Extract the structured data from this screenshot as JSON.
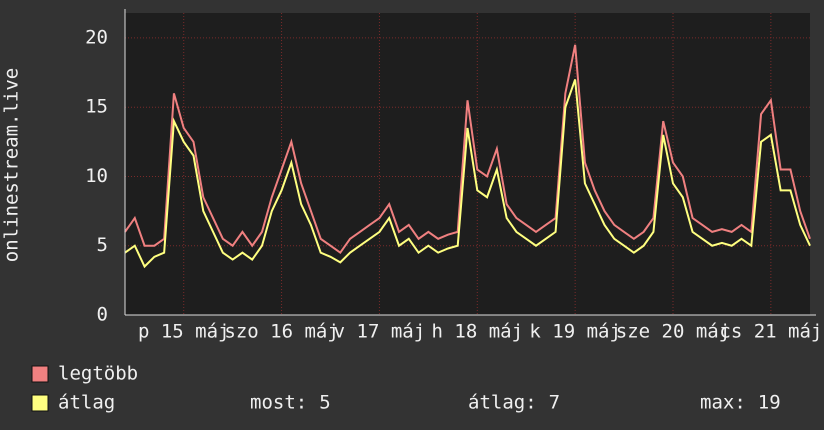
{
  "chart_data": {
    "type": "line",
    "y_label": "onlinestream.live",
    "ylim": [
      0,
      21.8
    ],
    "yticks": [
      0,
      5,
      10,
      15,
      20
    ],
    "grid": true,
    "xlim": [
      0,
      70
    ],
    "xticks": [
      {
        "value": 6,
        "label": "p 15 máj"
      },
      {
        "value": 16,
        "label": "szo 16 máj"
      },
      {
        "value": 26,
        "label": "v 17 máj"
      },
      {
        "value": 36,
        "label": "h 18 máj"
      },
      {
        "value": 46,
        "label": "k 19 máj"
      },
      {
        "value": 56,
        "label": "sze 20 máj"
      },
      {
        "value": 66,
        "label": "cs 21 máj"
      }
    ],
    "series": [
      {
        "name": "legtöbb",
        "color": "#f08080",
        "values": [
          6,
          7,
          5,
          5,
          5.5,
          16,
          13.5,
          12.5,
          8.5,
          7,
          5.5,
          5,
          6,
          5,
          6,
          8.5,
          10.5,
          12.5,
          9.5,
          7.5,
          5.5,
          5,
          4.5,
          5.5,
          6,
          6.5,
          7,
          8,
          6,
          6.5,
          5.5,
          6,
          5.5,
          5.8,
          6,
          15.5,
          10.5,
          10,
          12,
          8,
          7,
          6.5,
          6,
          6.5,
          7,
          16,
          19.5,
          11,
          9,
          7.5,
          6.5,
          6,
          5.5,
          6,
          7,
          14,
          11,
          10,
          7,
          6.5,
          6,
          6.2,
          6,
          6.5,
          6,
          14.5,
          15.5,
          10.5,
          10.5,
          7.5,
          5.5
        ]
      },
      {
        "name": "átlag",
        "color": "#ffff80",
        "values": [
          4.5,
          5,
          3.5,
          4.2,
          4.5,
          14,
          12.5,
          11.5,
          7.5,
          6,
          4.5,
          4,
          4.5,
          4,
          5,
          7.5,
          9,
          11,
          8,
          6.5,
          4.5,
          4.2,
          3.8,
          4.5,
          5,
          5.5,
          6,
          7,
          5,
          5.5,
          4.5,
          5,
          4.5,
          4.8,
          5,
          13.5,
          9,
          8.5,
          10.5,
          7,
          6,
          5.5,
          5,
          5.5,
          6,
          15,
          17,
          9.5,
          8,
          6.5,
          5.5,
          5,
          4.5,
          5,
          6,
          13,
          9.5,
          8.5,
          6,
          5.5,
          5,
          5.2,
          5,
          5.5,
          5,
          12.5,
          13,
          9,
          9,
          6.5,
          5
        ]
      }
    ],
    "stats": [
      {
        "label": "most:",
        "value": 5
      },
      {
        "label": "átlag:",
        "value": 7
      },
      {
        "label": "max:",
        "value": 19
      }
    ]
  }
}
